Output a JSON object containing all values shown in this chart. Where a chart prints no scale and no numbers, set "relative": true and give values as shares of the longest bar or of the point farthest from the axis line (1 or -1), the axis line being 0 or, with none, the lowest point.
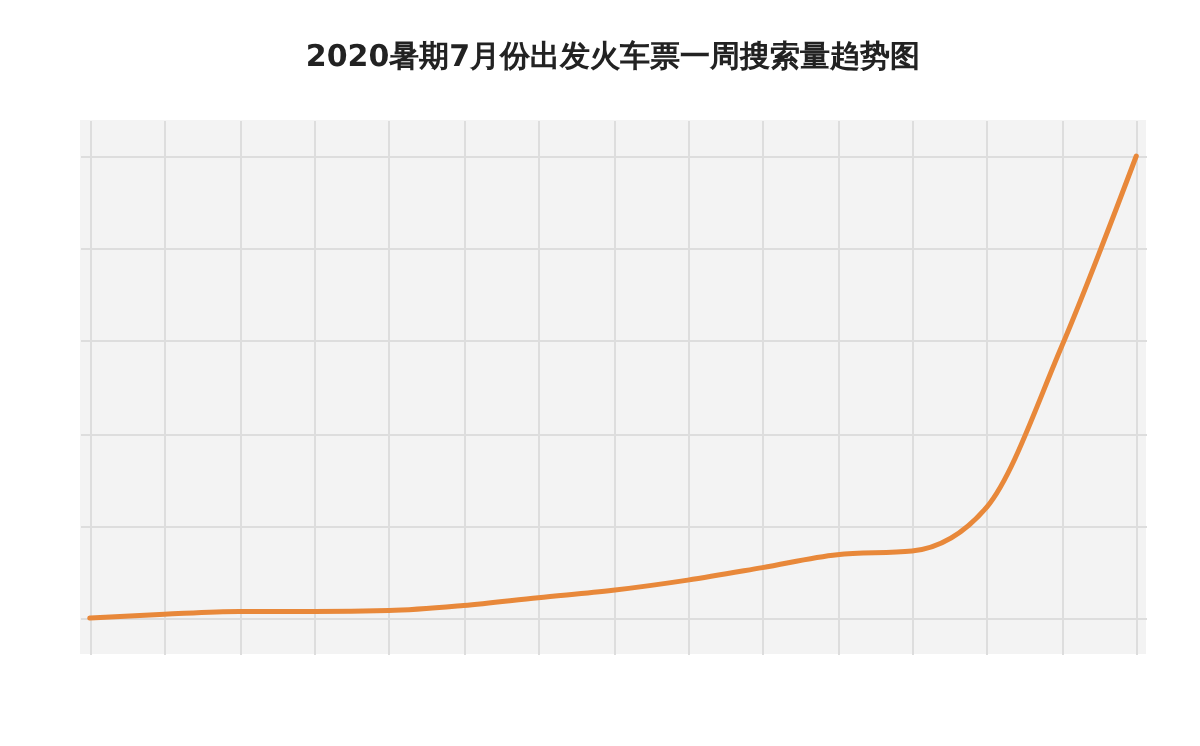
{
  "chart_data": {
    "type": "line",
    "title": "2020暑期7月份出发火车票一周搜索量趋势图",
    "relative": true,
    "grid": true,
    "marker": "none",
    "line_style": "solid",
    "categories": [
      null,
      null,
      null,
      null,
      null,
      null,
      null,
      null,
      null,
      null,
      null,
      null,
      null,
      null,
      null
    ],
    "series": [
      {
        "color": "#e8883a",
        "values": [
          0,
          0.008,
          0.014,
          0.014,
          0.016,
          0.027,
          0.044,
          0.06,
          0.082,
          0.109,
          0.137,
          0.145,
          0.24,
          0.587,
          1
        ]
      }
    ]
  }
}
